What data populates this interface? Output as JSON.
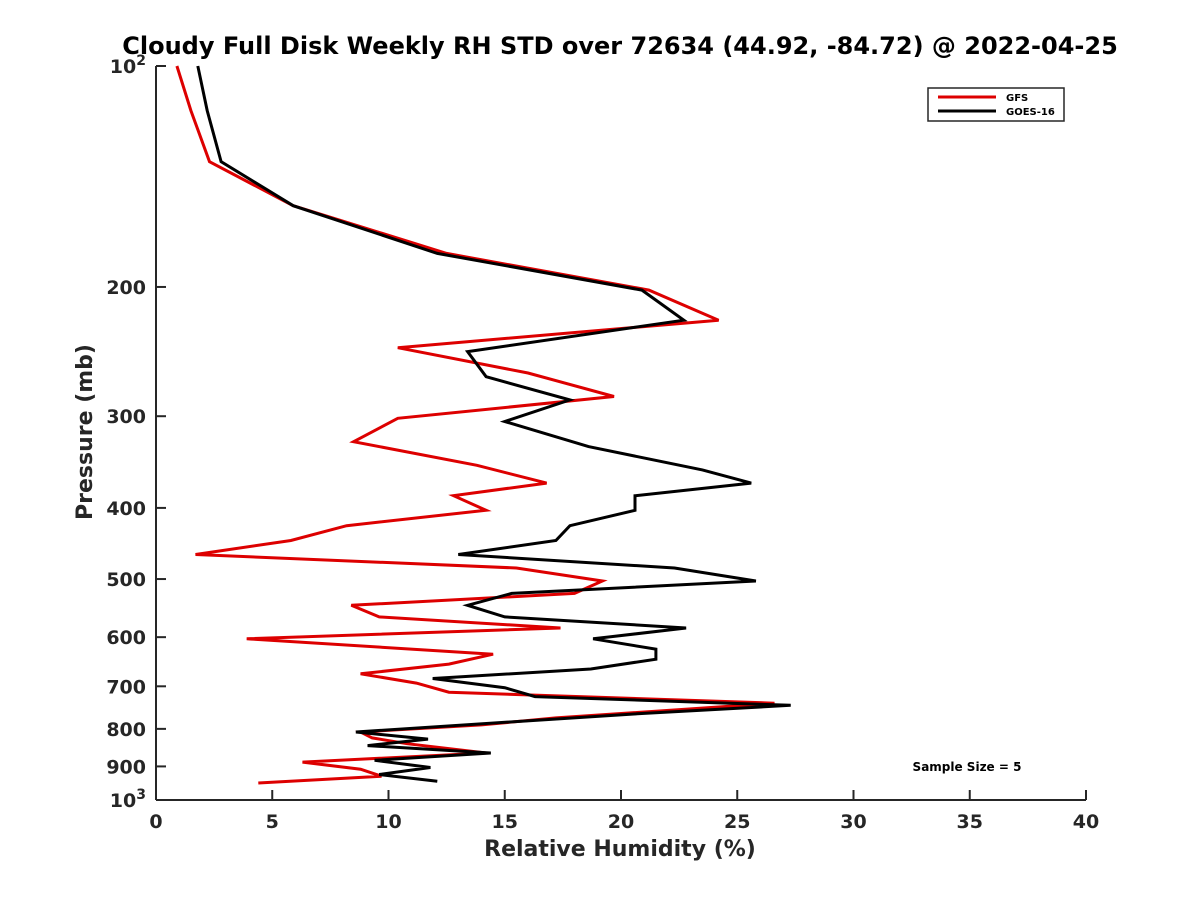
{
  "chart_data": {
    "type": "line",
    "title": "Cloudy Full Disk Weekly RH STD over 72634 (44.92, -84.72) @ 2022-04-25",
    "xlabel": "Relative Humidity (%)",
    "ylabel": "Pressure (mb)",
    "xlim": [
      0,
      40
    ],
    "ylim": [
      100,
      1000
    ],
    "y_scale": "log",
    "y_reversed": true,
    "grid": false,
    "legend_position": "top-right",
    "x_ticks": [
      "0",
      "5",
      "10",
      "15",
      "20",
      "25",
      "30",
      "35",
      "40"
    ],
    "y_ticks": [
      {
        "value": 100,
        "base": "10",
        "exp": "2"
      },
      {
        "value": 200,
        "label": "200"
      },
      {
        "value": 300,
        "label": "300"
      },
      {
        "value": 400,
        "label": "400"
      },
      {
        "value": 500,
        "label": "500"
      },
      {
        "value": 600,
        "label": "600"
      },
      {
        "value": 700,
        "label": "700"
      },
      {
        "value": 800,
        "label": "800"
      },
      {
        "value": 900,
        "label": "900"
      },
      {
        "value": 1000,
        "base": "10",
        "exp": "3"
      }
    ],
    "annotations": [
      "Sample Size = 5"
    ],
    "series": [
      {
        "name": "GFS",
        "color": "#dd0000",
        "points": [
          [
            0.9,
            100
          ],
          [
            1.5,
            115
          ],
          [
            2.3,
            135
          ],
          [
            5.9,
            155
          ],
          [
            12.5,
            180
          ],
          [
            21.2,
            202
          ],
          [
            24.2,
            222
          ],
          [
            10.4,
            242
          ],
          [
            16.0,
            262
          ],
          [
            19.7,
            282
          ],
          [
            10.4,
            302
          ],
          [
            8.5,
            325
          ],
          [
            13.8,
            350
          ],
          [
            16.8,
            370
          ],
          [
            12.8,
            385
          ],
          [
            14.2,
            403
          ],
          [
            8.2,
            423
          ],
          [
            5.8,
            443
          ],
          [
            1.7,
            463
          ],
          [
            15.5,
            483
          ],
          [
            19.2,
            503
          ],
          [
            18.0,
            523
          ],
          [
            8.4,
            543
          ],
          [
            9.6,
            563
          ],
          [
            17.4,
            583
          ],
          [
            3.9,
            603
          ],
          [
            14.5,
            633
          ],
          [
            12.6,
            653
          ],
          [
            8.8,
            673
          ],
          [
            11.2,
            693
          ],
          [
            12.6,
            713
          ],
          [
            26.6,
            738
          ],
          [
            17.2,
            773
          ],
          [
            14.0,
            790
          ],
          [
            8.8,
            808
          ],
          [
            9.3,
            823
          ],
          [
            10.8,
            838
          ],
          [
            14.2,
            863
          ],
          [
            6.3,
            888
          ],
          [
            8.8,
            908
          ],
          [
            9.7,
            928
          ],
          [
            4.4,
            948
          ]
        ]
      },
      {
        "name": "GOES-16",
        "color": "#000000",
        "points": [
          [
            1.8,
            100
          ],
          [
            2.2,
            115
          ],
          [
            2.8,
            135
          ],
          [
            5.9,
            155
          ],
          [
            12.1,
            180
          ],
          [
            20.9,
            202
          ],
          [
            22.7,
            222
          ],
          [
            13.4,
            245
          ],
          [
            14.2,
            265
          ],
          [
            17.8,
            285
          ],
          [
            15.0,
            305
          ],
          [
            18.6,
            330
          ],
          [
            23.5,
            355
          ],
          [
            25.6,
            370
          ],
          [
            20.6,
            385
          ],
          [
            20.6,
            403
          ],
          [
            17.8,
            423
          ],
          [
            17.2,
            443
          ],
          [
            13.0,
            463
          ],
          [
            22.3,
            483
          ],
          [
            25.8,
            503
          ],
          [
            15.3,
            523
          ],
          [
            13.4,
            543
          ],
          [
            15.0,
            563
          ],
          [
            22.8,
            583
          ],
          [
            18.8,
            603
          ],
          [
            21.5,
            623
          ],
          [
            21.5,
            643
          ],
          [
            18.7,
            663
          ],
          [
            11.9,
            683
          ],
          [
            15.0,
            703
          ],
          [
            16.3,
            723
          ],
          [
            27.3,
            743
          ],
          [
            20.7,
            763
          ],
          [
            13.8,
            788
          ],
          [
            8.6,
            808
          ],
          [
            11.7,
            826
          ],
          [
            9.1,
            843
          ],
          [
            14.4,
            863
          ],
          [
            9.4,
            883
          ],
          [
            11.8,
            903
          ],
          [
            9.6,
            923
          ],
          [
            12.1,
            943
          ]
        ]
      }
    ]
  }
}
